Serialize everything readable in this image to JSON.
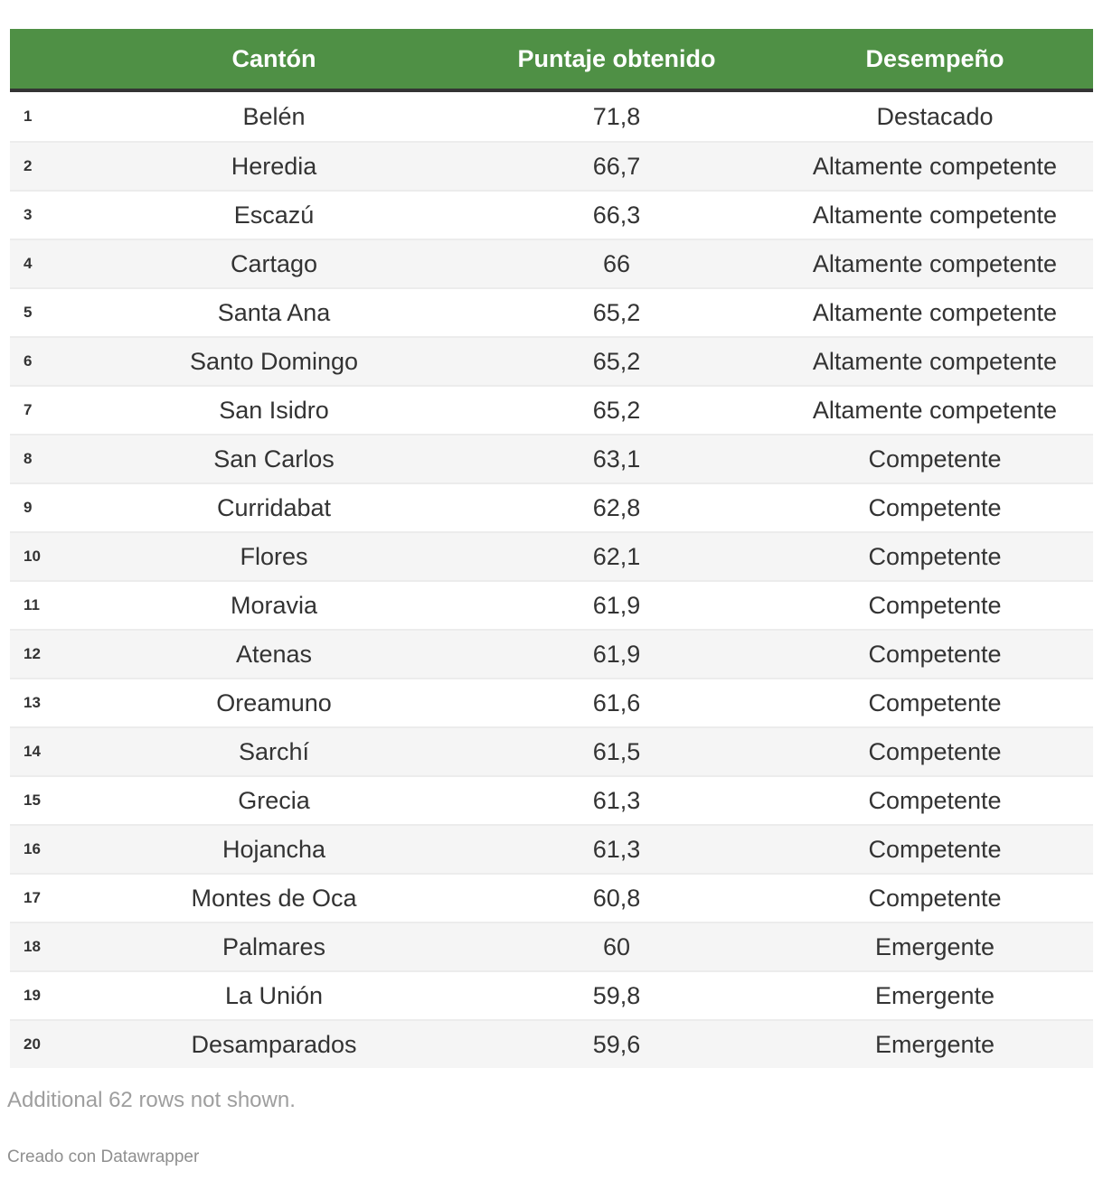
{
  "chart_data": {
    "type": "table",
    "columns": [
      "",
      "Cantón",
      "Puntaje obtenido",
      "Desempeño"
    ],
    "rows": [
      [
        "1",
        "Belén",
        "71,8",
        "Destacado"
      ],
      [
        "2",
        "Heredia",
        "66,7",
        "Altamente competente"
      ],
      [
        "3",
        "Escazú",
        "66,3",
        "Altamente competente"
      ],
      [
        "4",
        "Cartago",
        "66",
        "Altamente competente"
      ],
      [
        "5",
        "Santa Ana",
        "65,2",
        "Altamente competente"
      ],
      [
        "6",
        "Santo Domingo",
        "65,2",
        "Altamente competente"
      ],
      [
        "7",
        "San Isidro",
        "65,2",
        "Altamente competente"
      ],
      [
        "8",
        "San Carlos",
        "63,1",
        "Competente"
      ],
      [
        "9",
        "Curridabat",
        "62,8",
        "Competente"
      ],
      [
        "10",
        "Flores",
        "62,1",
        "Competente"
      ],
      [
        "11",
        "Moravia",
        "61,9",
        "Competente"
      ],
      [
        "12",
        "Atenas",
        "61,9",
        "Competente"
      ],
      [
        "13",
        "Oreamuno",
        "61,6",
        "Competente"
      ],
      [
        "14",
        "Sarchí",
        "61,5",
        "Competente"
      ],
      [
        "15",
        "Grecia",
        "61,3",
        "Competente"
      ],
      [
        "16",
        "Hojancha",
        "61,3",
        "Competente"
      ],
      [
        "17",
        "Montes de Oca",
        "60,8",
        "Competente"
      ],
      [
        "18",
        "Palmares",
        "60",
        "Emergente"
      ],
      [
        "19",
        "La Unión",
        "59,8",
        "Emergente"
      ],
      [
        "20",
        "Desamparados",
        "59,6",
        "Emergente"
      ]
    ],
    "layout_hints": {
      "row_striping": true,
      "header_position": "top"
    }
  },
  "footer": {
    "note": "Additional 62 rows not shown.",
    "attribution": "Creado con Datawrapper"
  },
  "colors": {
    "header_bg": "#4f9045",
    "header_text": "#ffffff",
    "header_border": "#343434",
    "body_text": "#333333",
    "row_alt_bg": "#f5f5f5",
    "row_divider": "#ececec",
    "note_text": "#9e9e9e",
    "attribution_text": "#8f8f8f"
  }
}
